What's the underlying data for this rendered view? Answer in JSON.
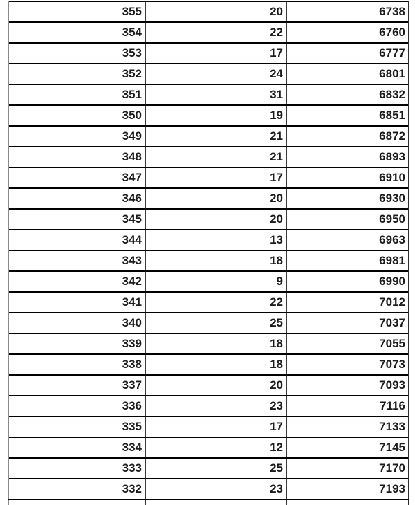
{
  "table": {
    "rows": [
      [
        "355",
        "20",
        "6738"
      ],
      [
        "354",
        "22",
        "6760"
      ],
      [
        "353",
        "17",
        "6777"
      ],
      [
        "352",
        "24",
        "6801"
      ],
      [
        "351",
        "31",
        "6832"
      ],
      [
        "350",
        "19",
        "6851"
      ],
      [
        "349",
        "21",
        "6872"
      ],
      [
        "348",
        "21",
        "6893"
      ],
      [
        "347",
        "17",
        "6910"
      ],
      [
        "346",
        "20",
        "6930"
      ],
      [
        "345",
        "20",
        "6950"
      ],
      [
        "344",
        "13",
        "6963"
      ],
      [
        "343",
        "18",
        "6981"
      ],
      [
        "342",
        "9",
        "6990"
      ],
      [
        "341",
        "22",
        "7012"
      ],
      [
        "340",
        "25",
        "7037"
      ],
      [
        "339",
        "18",
        "7055"
      ],
      [
        "338",
        "18",
        "7073"
      ],
      [
        "337",
        "20",
        "7093"
      ],
      [
        "336",
        "23",
        "7116"
      ],
      [
        "335",
        "17",
        "7133"
      ],
      [
        "334",
        "12",
        "7145"
      ],
      [
        "333",
        "25",
        "7170"
      ],
      [
        "332",
        "23",
        "7193"
      ]
    ],
    "partial_row_visible": true
  },
  "colors": {
    "background": "#ffffff",
    "text": "#1c1c1c",
    "horizontal_border": "#000000",
    "vertical_border": "#3a3a3a",
    "outer_left_border": "#8a8a8a",
    "outer_right_border": "#2b2b2b"
  }
}
